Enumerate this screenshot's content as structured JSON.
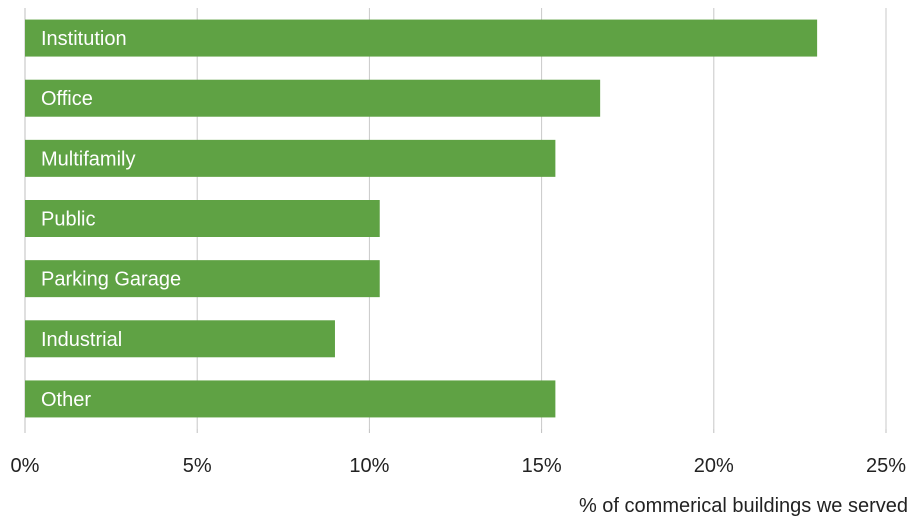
{
  "chart_data": {
    "type": "bar",
    "orientation": "horizontal",
    "categories": [
      "Institution",
      "Office",
      "Multifamily",
      "Public",
      "Parking Garage",
      "Industrial",
      "Other"
    ],
    "values": [
      0.23,
      0.167,
      0.154,
      0.103,
      0.103,
      0.09,
      0.154
    ],
    "xlabel": "% of commerical buildings we served",
    "xlim": [
      0,
      0.25
    ],
    "ticks": [
      0,
      0.05,
      0.1,
      0.15,
      0.2,
      0.25
    ],
    "tick_labels": [
      "0%",
      "5%",
      "10%",
      "15%",
      "20%",
      "25%"
    ],
    "bar_color": "#5fa244",
    "grid_color": "#c8c8c8",
    "grid": true,
    "legend": "none",
    "category_labels_inside_bars": true
  }
}
